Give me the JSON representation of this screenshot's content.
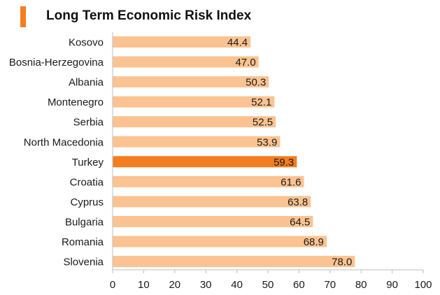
{
  "chart_data": {
    "type": "bar",
    "orientation": "horizontal",
    "title": "Long Term Economic Risk Index",
    "categories": [
      "Kosovo",
      "Bosnia-Herzegovina",
      "Albania",
      "Montenegro",
      "Serbia",
      "North Macedonia",
      "Turkey",
      "Croatia",
      "Cyprus",
      "Bulgaria",
      "Romania",
      "Slovenia"
    ],
    "values": [
      44.4,
      47.0,
      50.3,
      52.1,
      52.5,
      53.9,
      59.3,
      61.6,
      63.8,
      64.5,
      68.9,
      78.0
    ],
    "value_labels": [
      "44.4",
      "47.0",
      "50.3",
      "52.1",
      "52.5",
      "53.9",
      "59.3",
      "61.6",
      "63.8",
      "64.5",
      "68.9",
      "78.0"
    ],
    "highlight_category": "Turkey",
    "xlim": [
      0,
      100
    ],
    "x_ticks": [
      0,
      10,
      20,
      30,
      40,
      50,
      60,
      70,
      80,
      90,
      100
    ],
    "xlabel": "",
    "ylabel": "",
    "grid": false,
    "legend": "none",
    "colors": {
      "bar": "#fbc391",
      "highlight": "#f47d20",
      "accent": "#f47d20",
      "axis": "#bfbfbf",
      "text": "#1a1a1a"
    }
  }
}
